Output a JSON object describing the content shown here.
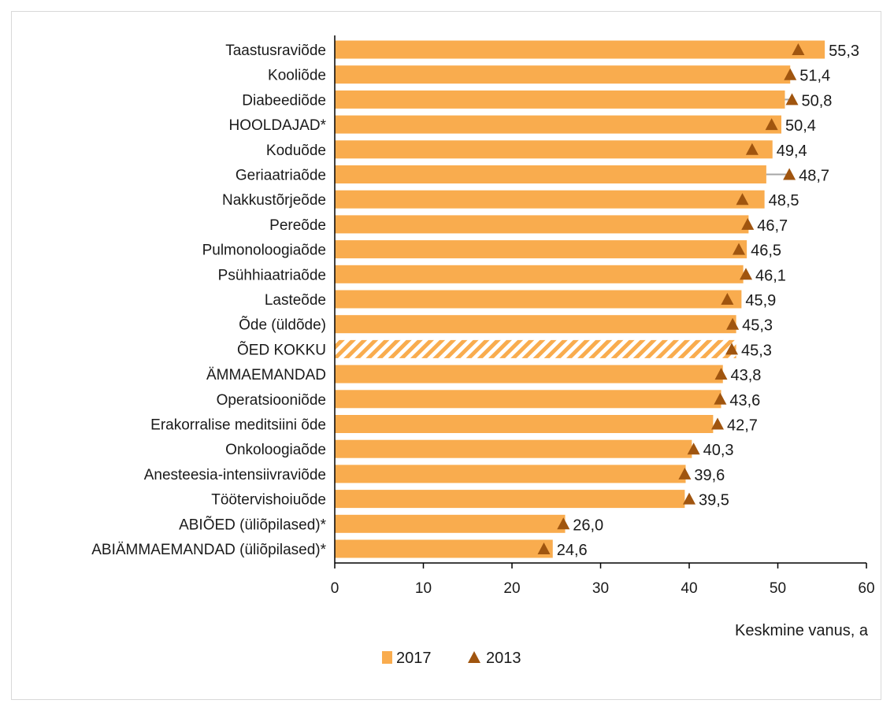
{
  "chart_data": {
    "type": "bar",
    "orientation": "horizontal",
    "categories": [
      "Taastusraviõde",
      "Kooliõde",
      "Diabeediõde",
      "HOOLDAJAD*",
      "Koduõde",
      "Geriaatriaõde",
      "Nakkustõrjeõde",
      "Pereõde",
      "Pulmonoloogiaõde",
      "Psühhiaatriaõde",
      "Lasteõde",
      "Õde (üldõde)",
      "ÕED KOKKU",
      "ÄMMAEMANDAD",
      "Operatsiooniõde",
      "Erakorralise meditsiini õde",
      "Onkoloogiaõde",
      "Anesteesia-intensiivraviõde",
      "Töötervishoiuõde",
      "ABIÕED (üliõpilased)*",
      "ABIÄMMAEMANDAD (üliõpilased)*"
    ],
    "series": [
      {
        "name": "2017",
        "mark": "bar",
        "color": "#F9AC4E",
        "values": [
          55.3,
          51.4,
          50.8,
          50.4,
          49.4,
          48.7,
          48.5,
          46.7,
          46.5,
          46.1,
          45.9,
          45.3,
          45.3,
          43.8,
          43.6,
          42.7,
          40.3,
          39.6,
          39.5,
          26.0,
          24.6
        ],
        "data_labels": [
          "55,3",
          "51,4",
          "50,8",
          "50,4",
          "49,4",
          "48,7",
          "48,5",
          "46,7",
          "46,5",
          "46,1",
          "45,9",
          "45,3",
          "45,3",
          "43,8",
          "43,6",
          "42,7",
          "40,3",
          "39,6",
          "39,5",
          "26,0",
          "24,6"
        ]
      },
      {
        "name": "2013",
        "mark": "triangle",
        "color": "#A0550F",
        "values": [
          52.3,
          51.4,
          51.6,
          49.3,
          47.1,
          51.3,
          46.0,
          46.6,
          45.6,
          46.4,
          44.3,
          44.9,
          44.8,
          43.6,
          43.5,
          43.2,
          40.5,
          39.5,
          40.0,
          25.8,
          23.6
        ]
      }
    ],
    "highlight": {
      "category": "ÕED KOKKU",
      "pattern": "diagonal-hatch"
    },
    "xlabel": "Keskmine vanus, a",
    "ylabel": "",
    "xlim": [
      0,
      60
    ],
    "xticks": [
      0,
      10,
      20,
      30,
      40,
      50,
      60
    ],
    "grid": false,
    "legend_position": "bottom-left"
  }
}
